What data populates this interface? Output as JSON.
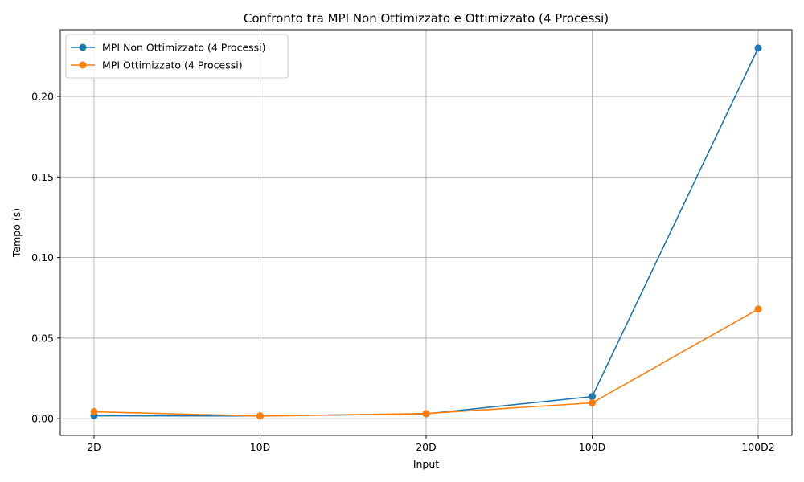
{
  "chart_data": {
    "type": "line",
    "title": "Confronto tra MPI Non Ottimizzato e Ottimizzato (4 Processi)",
    "xlabel": "Input",
    "ylabel": "Tempo (s)",
    "categories": [
      "2D",
      "10D",
      "20D",
      "100D",
      "100D2"
    ],
    "y_ticks": [
      0.0,
      0.05,
      0.1,
      0.15,
      0.2
    ],
    "y_tick_labels": [
      "0.00",
      "0.05",
      "0.10",
      "0.15",
      "0.20"
    ],
    "ylim": [
      -0.0104,
      0.2414
    ],
    "grid": true,
    "legend_position": "upper-left",
    "series": [
      {
        "name": "MPI Non Ottimizzato (4 Processi)",
        "color": "#1f77b4",
        "marker": "circle",
        "values": [
          0.0018,
          0.0017,
          0.003,
          0.0137,
          0.23
        ]
      },
      {
        "name": "MPI Ottimizzato (4 Processi)",
        "color": "#ff7f0e",
        "marker": "circle",
        "values": [
          0.0043,
          0.0016,
          0.0032,
          0.0098,
          0.068
        ]
      }
    ]
  }
}
